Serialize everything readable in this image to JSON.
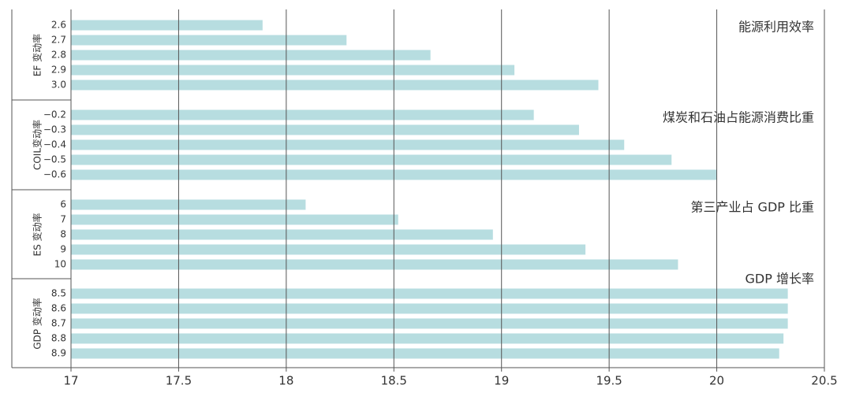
{
  "chart_data": {
    "type": "bar",
    "color": "#b7dde0",
    "xlim": [
      17,
      20.5
    ],
    "xticks": [
      17,
      17.5,
      18,
      18.5,
      19,
      19.5,
      20,
      20.5
    ],
    "grid": true,
    "groups": [
      {
        "label": "EF 变动率",
        "title": "能源利用效率",
        "categories": [
          "2.6",
          "2.7",
          "2.8",
          "2.9",
          "3.0"
        ],
        "values": [
          17.89,
          18.28,
          18.67,
          19.06,
          19.45
        ]
      },
      {
        "label": "COIL变动率",
        "title": "煤炭和石油占能源消费比重",
        "categories": [
          "−0.2",
          "−0.3",
          "−0.4",
          "−0.5",
          "−0.6"
        ],
        "values": [
          19.15,
          19.36,
          19.57,
          19.79,
          20.0
        ]
      },
      {
        "label": "ES 变动率",
        "title": "第三产业占 GDP 比重",
        "categories": [
          "6",
          "7",
          "8",
          "9",
          "10"
        ],
        "values": [
          18.09,
          18.52,
          18.96,
          19.39,
          19.82
        ]
      },
      {
        "label": "GDP 变动率",
        "title": "GDP 增长率",
        "categories": [
          "8.5",
          "8.6",
          "8.7",
          "8.8",
          "8.9"
        ],
        "values": [
          20.33,
          20.33,
          20.33,
          20.31,
          20.29
        ]
      }
    ]
  }
}
